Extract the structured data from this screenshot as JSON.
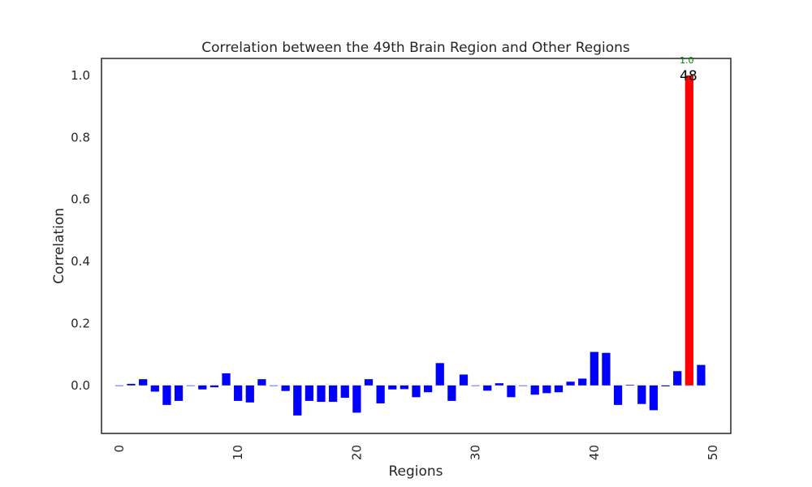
{
  "chart_data": {
    "type": "bar",
    "title": "Correlation between the 49th Brain Region and Other Regions",
    "xlabel": "Regions",
    "ylabel": "Correlation",
    "xlim": [
      -1.5,
      51.5
    ],
    "ylim": [
      -0.155,
      1.055
    ],
    "x_ticks": [
      0,
      10,
      20,
      30,
      40,
      50
    ],
    "y_ticks": [
      0.0,
      0.2,
      0.4,
      0.6,
      0.8,
      1.0
    ],
    "y_tick_labels": [
      "0.0",
      "0.2",
      "0.4",
      "0.6",
      "0.8",
      "1.0"
    ],
    "grid": false,
    "bar_color": "#0000ff",
    "highlight_color": "#ff0000",
    "annotation_color": "#008000",
    "x": [
      0,
      1,
      2,
      3,
      4,
      5,
      6,
      7,
      8,
      9,
      10,
      11,
      12,
      13,
      14,
      15,
      16,
      17,
      18,
      19,
      20,
      21,
      22,
      23,
      24,
      25,
      26,
      27,
      28,
      29,
      30,
      31,
      32,
      33,
      34,
      35,
      36,
      37,
      38,
      39,
      40,
      41,
      42,
      43,
      44,
      45,
      46,
      47,
      48,
      49
    ],
    "values": [
      0.0,
      0.005,
      0.02,
      -0.02,
      -0.063,
      -0.05,
      0.0,
      -0.013,
      -0.006,
      0.039,
      -0.05,
      -0.055,
      0.02,
      0.0,
      -0.018,
      -0.097,
      -0.05,
      -0.053,
      -0.053,
      -0.04,
      -0.088,
      0.02,
      -0.058,
      -0.013,
      -0.012,
      -0.038,
      -0.022,
      0.072,
      -0.05,
      0.035,
      0.0,
      -0.017,
      0.007,
      -0.038,
      0.0,
      -0.03,
      -0.025,
      -0.022,
      0.012,
      0.022,
      0.108,
      0.105,
      -0.063,
      0.002,
      -0.06,
      -0.08,
      -0.003,
      0.046,
      1.0,
      0.066
    ],
    "highlight": {
      "index": 48,
      "value_label": "1.0",
      "index_label": "48"
    }
  }
}
